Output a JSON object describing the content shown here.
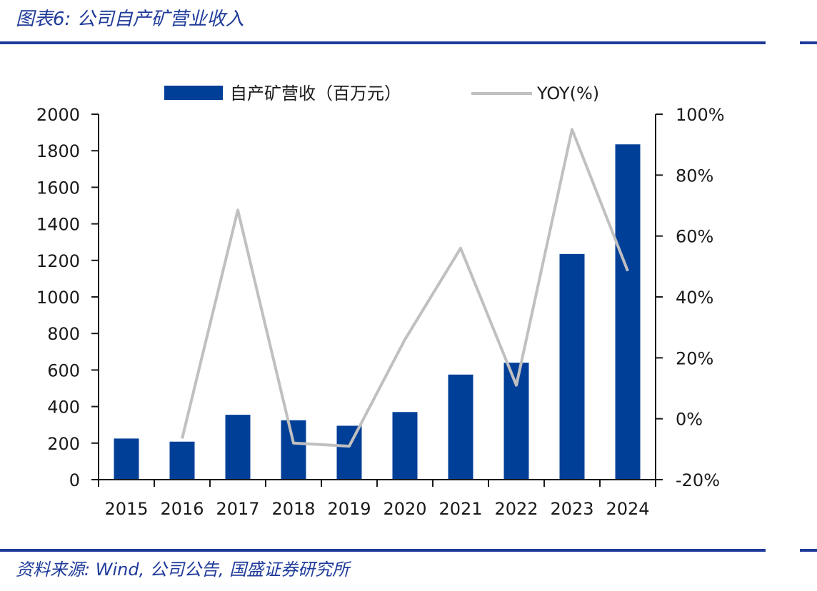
{
  "figure": {
    "title": "图表6:  公司自产矿营业收入",
    "source": "资料来源:  Wind, 公司公告, 国盛证券研究所"
  },
  "colors": {
    "bar": "#003f98",
    "line": "#c0c0c0",
    "accent": "#1f3b9a",
    "axis": "#1a1a1a"
  },
  "chart_data": {
    "type": "bar",
    "categories": [
      "2015",
      "2016",
      "2017",
      "2018",
      "2019",
      "2020",
      "2021",
      "2022",
      "2023",
      "2024"
    ],
    "series": [
      {
        "name": "自产矿营收（百万元）",
        "type": "bar",
        "axis": "left",
        "values": [
          225,
          208,
          355,
          325,
          295,
          370,
          575,
          640,
          1235,
          1835
        ]
      },
      {
        "name": "YOY(%)",
        "type": "line",
        "axis": "right",
        "values": [
          null,
          -6.5,
          68.5,
          -8,
          -9,
          26,
          56,
          11,
          95,
          48.5
        ]
      }
    ],
    "ylim": [
      0,
      2000
    ],
    "y_ticks": [
      "0",
      "200",
      "400",
      "600",
      "800",
      "1000",
      "1200",
      "1400",
      "1600",
      "1800",
      "2000"
    ],
    "y2lim": [
      -20,
      100
    ],
    "y2_ticks": [
      "-20%",
      "0%",
      "20%",
      "40%",
      "60%",
      "80%",
      "100%"
    ],
    "legend_position": "top-center",
    "grid": false
  }
}
